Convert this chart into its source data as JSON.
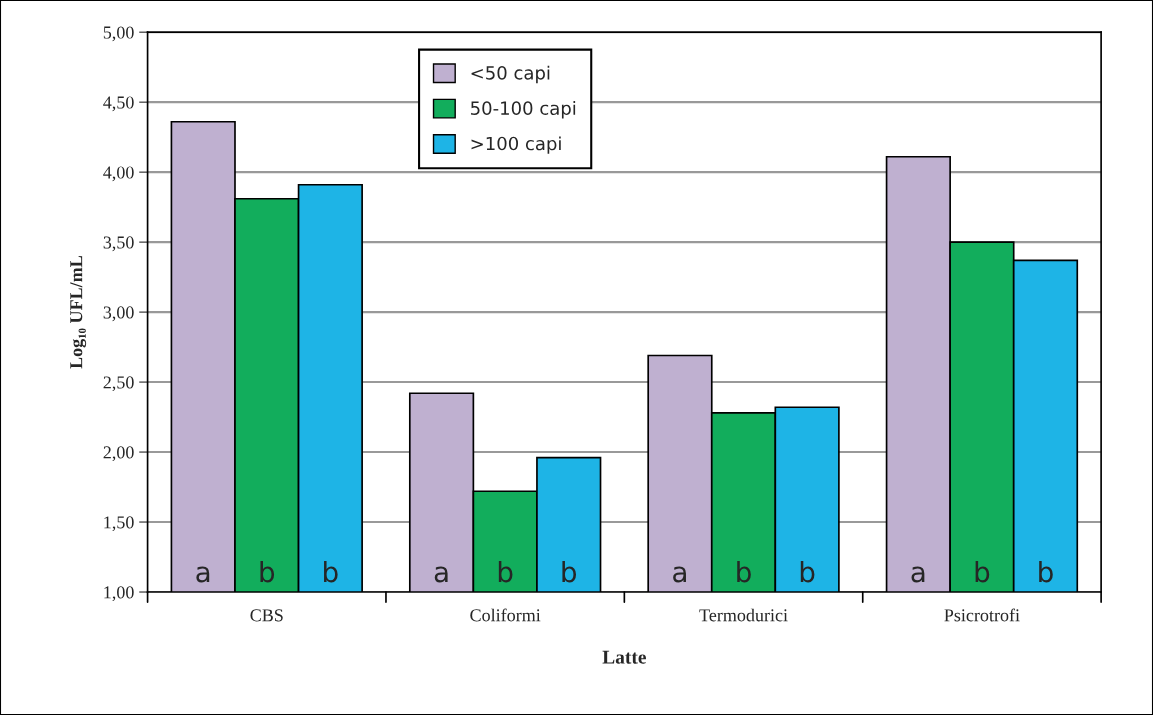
{
  "chart_data": {
    "type": "bar",
    "xlabel": "Latte",
    "ylabel": "Log₁₀ UFL/mL",
    "categories": [
      "CBS",
      "Coliformi",
      "Termodurici",
      "Psicrotrofi"
    ],
    "series": [
      {
        "name": "<50 capi",
        "color": "#bfb0d0",
        "values": [
          4.36,
          2.42,
          2.69,
          4.11
        ],
        "value_labels": [
          "a",
          "a",
          "a",
          "a"
        ]
      },
      {
        "name": "50-100 capi",
        "color": "#12ad5c",
        "values": [
          3.81,
          1.72,
          2.28,
          3.5
        ],
        "value_labels": [
          "b",
          "b",
          "b",
          "b"
        ]
      },
      {
        "name": ">100 capi",
        "color": "#1eb4e6",
        "values": [
          3.91,
          1.96,
          2.32,
          3.37
        ],
        "value_labels": [
          "b",
          "b",
          "b",
          "b"
        ]
      }
    ],
    "ylim": [
      1,
      5
    ],
    "yticks": [
      {
        "value": 1,
        "label": "1,00"
      },
      {
        "value": 1.5,
        "label": "1,50"
      },
      {
        "value": 2,
        "label": "2,00"
      },
      {
        "value": 2.5,
        "label": "2,50"
      },
      {
        "value": 3,
        "label": "3,00"
      },
      {
        "value": 3.5,
        "label": "3,50"
      },
      {
        "value": 4,
        "label": "4,00"
      },
      {
        "value": 4.5,
        "label": "4,50"
      },
      {
        "value": 5,
        "label": "5,00"
      }
    ],
    "grid": "y",
    "legend": "top"
  }
}
